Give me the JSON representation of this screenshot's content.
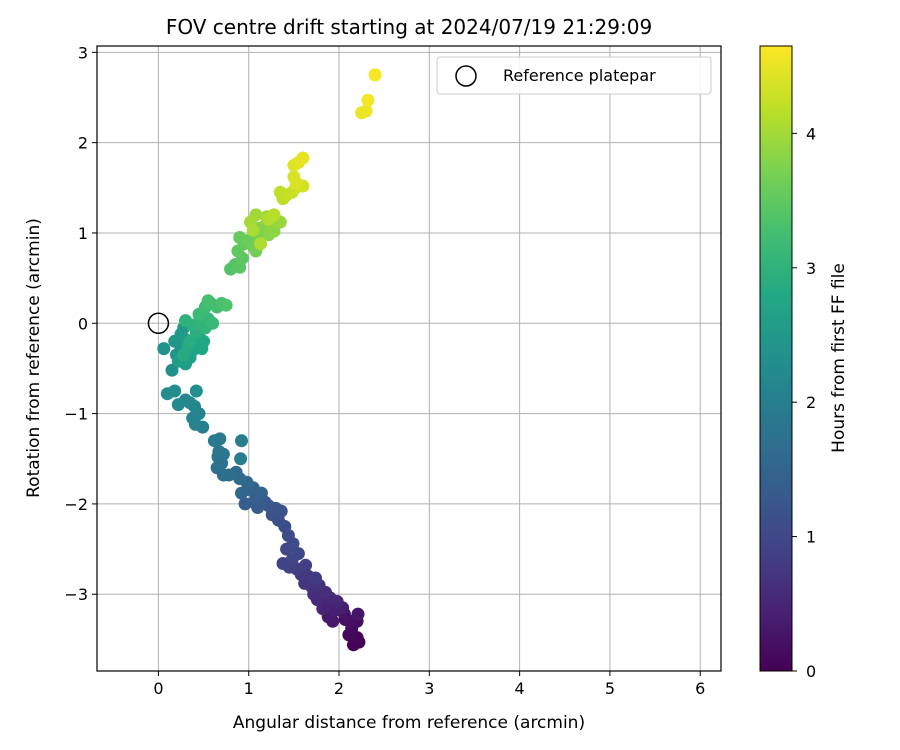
{
  "chart_data": {
    "type": "scatter",
    "title": "FOV centre drift starting at 2024/07/19 21:29:09",
    "xlabel": "Angular distance from reference (arcmin)",
    "ylabel": "Rotation from reference (arcmin)",
    "colorbar_label": "Hours from first FF file",
    "xlim": [
      -0.68,
      6.23
    ],
    "ylim": [
      -3.85,
      3.07
    ],
    "xticks": [
      0,
      1,
      2,
      3,
      4,
      5,
      6
    ],
    "yticks": [
      -3,
      -2,
      -1,
      0,
      1,
      2,
      3
    ],
    "colorbar_range": [
      0,
      4.65
    ],
    "colorbar_ticks": [
      0,
      1,
      2,
      3,
      4
    ],
    "grid": true,
    "legend_position": "top-right",
    "colormap": "viridis",
    "reference": {
      "name": "Reference platepar",
      "x": 0,
      "y": 0
    },
    "series": [
      {
        "points": [
          [
            2.22,
            -3.53
          ],
          [
            2.16,
            -3.56
          ],
          [
            2.2,
            -3.48
          ],
          [
            2.11,
            -3.45
          ],
          [
            2.14,
            -3.38
          ],
          [
            2.2,
            -3.3
          ],
          [
            2.12,
            -3.3
          ],
          [
            2.07,
            -3.28
          ],
          [
            2.06,
            -3.22
          ],
          [
            2.21,
            -3.22
          ],
          [
            1.93,
            -3.3
          ],
          [
            1.88,
            -3.25
          ],
          [
            2.04,
            -3.15
          ],
          [
            1.95,
            -3.18
          ],
          [
            1.86,
            -3.1
          ],
          [
            1.82,
            -3.16
          ],
          [
            1.98,
            -3.08
          ],
          [
            1.9,
            -3.04
          ],
          [
            1.76,
            -3.06
          ],
          [
            1.72,
            -3.0
          ],
          [
            1.85,
            -2.98
          ],
          [
            1.7,
            -2.92
          ],
          [
            1.78,
            -2.9
          ],
          [
            1.62,
            -2.88
          ],
          [
            1.66,
            -2.8
          ],
          [
            1.58,
            -2.78
          ],
          [
            1.74,
            -2.82
          ],
          [
            1.53,
            -2.72
          ],
          [
            1.63,
            -2.68
          ],
          [
            1.45,
            -2.7
          ],
          [
            1.38,
            -2.66
          ],
          [
            1.48,
            -2.62
          ],
          [
            1.55,
            -2.55
          ],
          [
            1.42,
            -2.5
          ],
          [
            1.49,
            -2.44
          ],
          [
            1.44,
            -2.35
          ],
          [
            1.4,
            -2.25
          ],
          [
            1.33,
            -2.18
          ],
          [
            1.26,
            -2.12
          ],
          [
            1.36,
            -2.08
          ],
          [
            1.3,
            -2.05
          ],
          [
            1.22,
            -2.02
          ],
          [
            1.18,
            -1.98
          ],
          [
            1.1,
            -2.04
          ],
          [
            1.06,
            -1.98
          ],
          [
            0.96,
            -2.0
          ],
          [
            1.08,
            -1.92
          ],
          [
            1.14,
            -1.88
          ],
          [
            1.05,
            -1.82
          ],
          [
            0.99,
            -1.84
          ],
          [
            0.92,
            -1.88
          ],
          [
            0.98,
            -1.76
          ],
          [
            0.9,
            -1.72
          ],
          [
            0.86,
            -1.65
          ],
          [
            0.78,
            -1.68
          ],
          [
            0.72,
            -1.68
          ],
          [
            0.65,
            -1.6
          ],
          [
            0.7,
            -1.55
          ],
          [
            0.66,
            -1.48
          ],
          [
            0.72,
            -1.45
          ],
          [
            0.67,
            -1.42
          ],
          [
            0.62,
            -1.3
          ],
          [
            0.68,
            -1.28
          ],
          [
            0.92,
            -1.3
          ],
          [
            0.91,
            -1.5
          ],
          [
            0.49,
            -1.15
          ],
          [
            0.41,
            -1.12
          ],
          [
            0.38,
            -1.05
          ],
          [
            0.45,
            -1.0
          ],
          [
            0.4,
            -0.92
          ],
          [
            0.35,
            -0.88
          ],
          [
            0.3,
            -0.85
          ],
          [
            0.22,
            -0.9
          ],
          [
            0.18,
            -0.75
          ],
          [
            0.1,
            -0.78
          ],
          [
            0.42,
            -0.75
          ],
          [
            0.15,
            -0.52
          ],
          [
            0.06,
            -0.28
          ],
          [
            0.2,
            -0.35
          ],
          [
            0.25,
            -0.28
          ],
          [
            0.18,
            -0.2
          ],
          [
            0.3,
            -0.18
          ],
          [
            0.25,
            -0.12
          ],
          [
            0.28,
            -0.05
          ],
          [
            0.22,
            -0.42
          ],
          [
            0.3,
            -0.45
          ],
          [
            0.35,
            -0.38
          ],
          [
            0.38,
            -0.3
          ],
          [
            0.42,
            -0.22
          ],
          [
            0.45,
            -0.15
          ],
          [
            0.48,
            -0.28
          ],
          [
            0.5,
            -0.2
          ],
          [
            0.33,
            -0.25
          ],
          [
            0.28,
            -0.35
          ],
          [
            0.35,
            -0.2
          ],
          [
            0.42,
            -0.1
          ],
          [
            0.38,
            -0.02
          ],
          [
            0.3,
            0.03
          ],
          [
            0.45,
            0.0
          ],
          [
            0.52,
            -0.05
          ],
          [
            0.55,
            0.05
          ],
          [
            0.5,
            0.08
          ],
          [
            0.6,
            0.0
          ],
          [
            0.45,
            0.1
          ],
          [
            0.52,
            0.18
          ],
          [
            0.58,
            0.22
          ],
          [
            0.65,
            0.18
          ],
          [
            0.55,
            0.25
          ],
          [
            0.7,
            0.22
          ],
          [
            0.75,
            0.2
          ],
          [
            0.8,
            0.6
          ],
          [
            0.85,
            0.65
          ],
          [
            0.9,
            0.62
          ],
          [
            0.93,
            0.72
          ],
          [
            0.88,
            0.8
          ],
          [
            0.95,
            0.88
          ],
          [
            0.9,
            0.95
          ],
          [
            1.0,
            0.92
          ],
          [
            1.05,
            0.85
          ],
          [
            1.08,
            0.8
          ],
          [
            1.12,
            0.92
          ],
          [
            1.15,
            1.0
          ],
          [
            1.1,
            1.05
          ],
          [
            1.18,
            1.08
          ],
          [
            1.22,
            0.98
          ],
          [
            1.28,
            1.02
          ],
          [
            1.25,
            1.1
          ],
          [
            1.3,
            1.15
          ],
          [
            1.35,
            1.12
          ],
          [
            1.2,
            1.18
          ],
          [
            1.08,
            1.2
          ],
          [
            1.02,
            1.12
          ],
          [
            1.05,
            1.03
          ],
          [
            1.13,
            0.88
          ],
          [
            1.22,
            1.15
          ],
          [
            1.28,
            1.2
          ],
          [
            1.38,
            1.38
          ],
          [
            1.35,
            1.45
          ],
          [
            1.42,
            1.42
          ],
          [
            1.48,
            1.45
          ],
          [
            1.52,
            1.5
          ],
          [
            1.6,
            1.52
          ],
          [
            1.5,
            1.62
          ],
          [
            1.53,
            1.55
          ],
          [
            1.5,
            1.75
          ],
          [
            1.55,
            1.78
          ],
          [
            1.6,
            1.83
          ],
          [
            2.25,
            2.33
          ],
          [
            2.3,
            2.35
          ],
          [
            2.32,
            2.47
          ],
          [
            2.4,
            2.75
          ]
        ]
      }
    ]
  }
}
